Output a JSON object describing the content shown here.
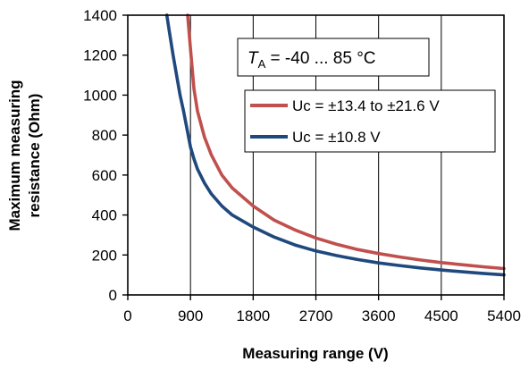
{
  "chart_data": {
    "type": "line",
    "xlabel": "Measuring range  (V)",
    "ylabel_line1": "Maximum measuring",
    "ylabel_line2": "resistance (Ohm)",
    "xlim": [
      0,
      5400
    ],
    "ylim": [
      0,
      1400
    ],
    "x_ticks": [
      0,
      900,
      1800,
      2700,
      3600,
      4500,
      5400
    ],
    "y_ticks": [
      0,
      200,
      400,
      600,
      800,
      1000,
      1200,
      1400
    ],
    "grid": "vertical",
    "annotation": {
      "italic": "T",
      "sub": "A",
      "rest": " = -40 ... 85 °C"
    },
    "legend_position": "right",
    "series": [
      {
        "name": "Uc = ±13.4 to ±21.6 V",
        "color": "#c0504d",
        "x": [
          860,
          900,
          950,
          1000,
          1100,
          1200,
          1350,
          1500,
          1800,
          2100,
          2400,
          2700,
          3000,
          3300,
          3600,
          3900,
          4200,
          4500,
          4800,
          5100,
          5400
        ],
        "y": [
          1400,
          1230,
          1030,
          920,
          790,
          700,
          600,
          535,
          445,
          375,
          325,
          285,
          253,
          227,
          207,
          190,
          175,
          162,
          151,
          141,
          132
        ]
      },
      {
        "name": "Uc = ±10.8 V",
        "color": "#1f497d",
        "x": [
          560,
          600,
          650,
          700,
          750,
          800,
          850,
          900,
          950,
          1000,
          1100,
          1200,
          1350,
          1500,
          1800,
          2100,
          2400,
          2700,
          3000,
          3300,
          3600,
          3900,
          4200,
          4500,
          4800,
          5100,
          5400
        ],
        "y": [
          1400,
          1310,
          1200,
          1100,
          1000,
          920,
          830,
          740,
          680,
          630,
          560,
          505,
          445,
          400,
          340,
          290,
          250,
          220,
          197,
          177,
          160,
          147,
          135,
          125,
          116,
          108,
          100
        ]
      }
    ]
  }
}
